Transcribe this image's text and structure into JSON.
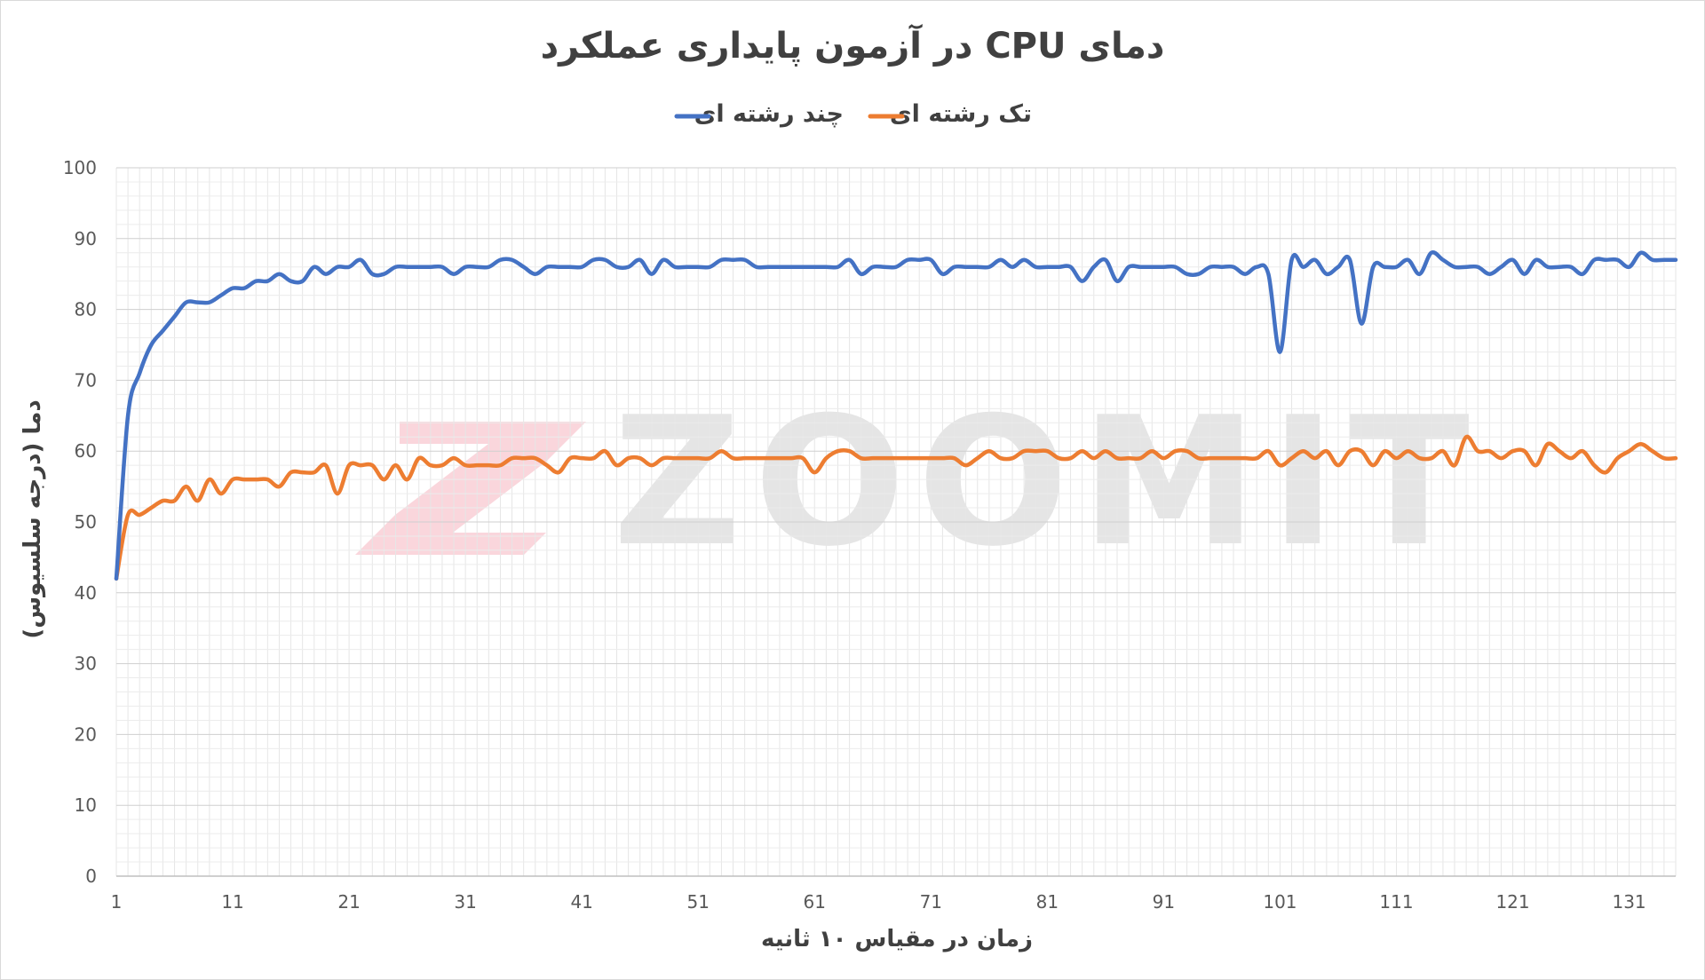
{
  "chart_data": {
    "type": "line",
    "title": "دمای CPU در آزمون پایداری عملکرد",
    "xlabel": "زمان در مقیاس ۱۰ ثانیه",
    "ylabel": "دما (درجه سلسیوس)",
    "ylim": [
      0,
      100
    ],
    "yticks": [
      0,
      10,
      20,
      30,
      40,
      50,
      60,
      70,
      80,
      90,
      100
    ],
    "xlim": [
      1,
      135
    ],
    "xticks": [
      1,
      11,
      21,
      31,
      41,
      51,
      61,
      71,
      81,
      91,
      101,
      111,
      121,
      131
    ],
    "grid": true,
    "legend_position": "top-center",
    "series": [
      {
        "name": "چند رشته ای",
        "color": "#4472C4",
        "values": [
          42,
          65,
          71,
          75,
          77,
          79,
          81,
          81,
          81,
          82,
          83,
          83,
          84,
          84,
          85,
          84,
          84,
          86,
          85,
          86,
          86,
          87,
          85,
          85,
          86,
          86,
          86,
          86,
          86,
          85,
          86,
          86,
          86,
          87,
          87,
          86,
          85,
          86,
          86,
          86,
          86,
          87,
          87,
          86,
          86,
          87,
          85,
          87,
          86,
          86,
          86,
          86,
          87,
          87,
          87,
          86,
          86,
          86,
          86,
          86,
          86,
          86,
          86,
          87,
          85,
          86,
          86,
          86,
          87,
          87,
          87,
          85,
          86,
          86,
          86,
          86,
          87,
          86,
          87,
          86,
          86,
          86,
          86,
          84,
          86,
          87,
          84,
          86,
          86,
          86,
          86,
          86,
          85,
          85,
          86,
          86,
          86,
          85,
          86,
          85,
          74,
          87,
          86,
          87,
          85,
          86,
          87,
          78,
          86,
          86,
          86,
          87,
          85,
          88,
          87,
          86,
          86,
          86,
          85,
          86,
          87,
          85,
          87,
          86,
          86,
          86,
          85,
          87,
          87,
          87,
          86,
          88,
          87,
          87,
          87
        ]
      },
      {
        "name": "تک رشته ای",
        "color": "#ED7D31",
        "values": [
          42,
          51,
          51,
          52,
          53,
          53,
          55,
          53,
          56,
          54,
          56,
          56,
          56,
          56,
          55,
          57,
          57,
          57,
          58,
          54,
          58,
          58,
          58,
          56,
          58,
          56,
          59,
          58,
          58,
          59,
          58,
          58,
          58,
          58,
          59,
          59,
          59,
          58,
          57,
          59,
          59,
          59,
          60,
          58,
          59,
          59,
          58,
          59,
          59,
          59,
          59,
          59,
          60,
          59,
          59,
          59,
          59,
          59,
          59,
          59,
          57,
          59,
          60,
          60,
          59,
          59,
          59,
          59,
          59,
          59,
          59,
          59,
          59,
          58,
          59,
          60,
          59,
          59,
          60,
          60,
          60,
          59,
          59,
          60,
          59,
          60,
          59,
          59,
          59,
          60,
          59,
          60,
          60,
          59,
          59,
          59,
          59,
          59,
          59,
          60,
          58,
          59,
          60,
          59,
          60,
          58,
          60,
          60,
          58,
          60,
          59,
          60,
          59,
          59,
          60,
          58,
          62,
          60,
          60,
          59,
          60,
          60,
          58,
          61,
          60,
          59,
          60,
          58,
          57,
          59,
          60,
          61,
          60,
          59,
          59
        ]
      }
    ]
  }
}
